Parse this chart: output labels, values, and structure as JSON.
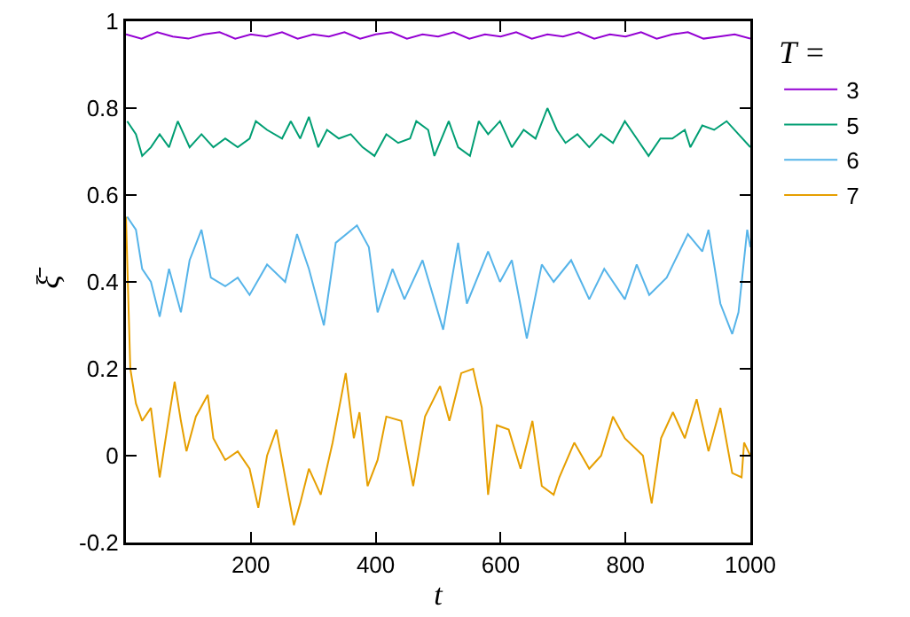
{
  "chart_data": {
    "type": "line",
    "xlabel": "t",
    "ylabel": "ξ̄",
    "legend_title": "T =",
    "legend": "top right",
    "grid": false,
    "marker": "none",
    "line_style": "solid",
    "xlim": [
      0,
      1000
    ],
    "xticks": [
      200,
      400,
      600,
      800,
      1000
    ],
    "ylim": [
      -0.2,
      1
    ],
    "yticks": [
      -0.2,
      0,
      0.2,
      0.4,
      0.6,
      0.8,
      1
    ],
    "series": [
      {
        "name": "3",
        "color": "#9400d3",
        "x": [
          0,
          25,
          50,
          75,
          100,
          125,
          150,
          175,
          200,
          225,
          250,
          275,
          300,
          325,
          350,
          375,
          400,
          425,
          450,
          475,
          500,
          525,
          550,
          575,
          600,
          625,
          650,
          675,
          700,
          725,
          750,
          775,
          800,
          825,
          850,
          875,
          900,
          925,
          950,
          975,
          1000
        ],
        "values": [
          0.97,
          0.96,
          0.975,
          0.965,
          0.96,
          0.97,
          0.975,
          0.96,
          0.97,
          0.965,
          0.975,
          0.96,
          0.97,
          0.965,
          0.975,
          0.96,
          0.97,
          0.975,
          0.96,
          0.97,
          0.965,
          0.975,
          0.96,
          0.97,
          0.965,
          0.975,
          0.96,
          0.97,
          0.965,
          0.975,
          0.96,
          0.97,
          0.965,
          0.975,
          0.96,
          0.97,
          0.975,
          0.96,
          0.965,
          0.97,
          0.96
        ]
      },
      {
        "name": "5",
        "color": "#009e73",
        "x": [
          2,
          16,
          26,
          40,
          54,
          69,
          83,
          102,
          121,
          140,
          159,
          179,
          198,
          208,
          226,
          250,
          264,
          279,
          293,
          308,
          322,
          341,
          360,
          379,
          398,
          417,
          436,
          455,
          465,
          484,
          494,
          517,
          532,
          551,
          565,
          580,
          599,
          618,
          637,
          656,
          675,
          690,
          704,
          723,
          742,
          761,
          780,
          799,
          818,
          837,
          856,
          875,
          895,
          904,
          923,
          942,
          962,
          981,
          1000
        ],
        "values": [
          0.77,
          0.74,
          0.69,
          0.71,
          0.74,
          0.71,
          0.77,
          0.71,
          0.74,
          0.71,
          0.73,
          0.71,
          0.73,
          0.77,
          0.75,
          0.73,
          0.77,
          0.73,
          0.78,
          0.71,
          0.75,
          0.73,
          0.74,
          0.71,
          0.69,
          0.74,
          0.72,
          0.73,
          0.77,
          0.75,
          0.69,
          0.77,
          0.71,
          0.69,
          0.77,
          0.74,
          0.77,
          0.71,
          0.75,
          0.73,
          0.8,
          0.75,
          0.72,
          0.74,
          0.71,
          0.74,
          0.72,
          0.77,
          0.73,
          0.69,
          0.73,
          0.73,
          0.75,
          0.71,
          0.76,
          0.75,
          0.77,
          0.74,
          0.71
        ]
      },
      {
        "name": "6",
        "color": "#56b4e9",
        "x": [
          2,
          16,
          26,
          40,
          54,
          69,
          88,
          102,
          121,
          136,
          159,
          179,
          198,
          226,
          255,
          274,
          293,
          317,
          336,
          370,
          389,
          403,
          427,
          446,
          475,
          508,
          532,
          546,
          580,
          599,
          618,
          642,
          666,
          685,
          713,
          742,
          766,
          799,
          818,
          838,
          866,
          900,
          923,
          933,
          952,
          971,
          981,
          995,
          1000
        ],
        "values": [
          0.55,
          0.52,
          0.43,
          0.4,
          0.32,
          0.43,
          0.33,
          0.45,
          0.52,
          0.41,
          0.39,
          0.41,
          0.37,
          0.44,
          0.4,
          0.51,
          0.43,
          0.3,
          0.49,
          0.53,
          0.48,
          0.33,
          0.43,
          0.36,
          0.45,
          0.29,
          0.49,
          0.35,
          0.47,
          0.4,
          0.45,
          0.27,
          0.44,
          0.4,
          0.45,
          0.36,
          0.43,
          0.36,
          0.44,
          0.37,
          0.41,
          0.51,
          0.47,
          0.52,
          0.35,
          0.28,
          0.33,
          0.52,
          0.48
        ]
      },
      {
        "name": "7",
        "color": "#e69f00",
        "x": [
          0,
          7,
          16,
          26,
          40,
          54,
          69,
          78,
          88,
          97,
          112,
          131,
          140,
          159,
          179,
          198,
          212,
          226,
          241,
          255,
          269,
          279,
          293,
          312,
          331,
          352,
          365,
          374,
          387,
          403,
          417,
          441,
          460,
          479,
          503,
          518,
          537,
          556,
          570,
          580,
          594,
          613,
          632,
          651,
          666,
          685,
          694,
          718,
          742,
          761,
          780,
          799,
          828,
          842,
          857,
          876,
          895,
          914,
          933,
          952,
          971,
          986,
          990,
          1000
        ],
        "values": [
          0.55,
          0.2,
          0.12,
          0.08,
          0.11,
          -0.05,
          0.09,
          0.17,
          0.08,
          0.01,
          0.09,
          0.14,
          0.04,
          -0.01,
          0.01,
          -0.03,
          -0.12,
          0,
          0.06,
          -0.05,
          -0.16,
          -0.11,
          -0.03,
          -0.09,
          0.03,
          0.19,
          0.04,
          0.1,
          -0.07,
          -0.01,
          0.09,
          0.08,
          -0.07,
          0.09,
          0.16,
          0.08,
          0.19,
          0.2,
          0.11,
          -0.09,
          0.07,
          0.06,
          -0.03,
          0.08,
          -0.07,
          -0.09,
          -0.05,
          0.03,
          -0.03,
          0,
          0.09,
          0.04,
          0,
          -0.11,
          0.04,
          0.1,
          0.04,
          0.13,
          0.01,
          0.11,
          -0.04,
          -0.05,
          0.03,
          0
        ]
      }
    ]
  }
}
